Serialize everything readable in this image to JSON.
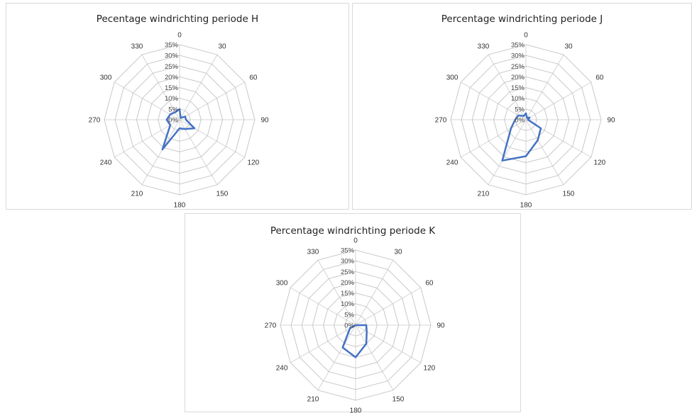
{
  "chart_data": [
    {
      "type": "radar",
      "title": "Pecentage windrichting periode H",
      "categories": [
        "0",
        "30",
        "60",
        "90",
        "120",
        "150",
        "180",
        "210",
        "240",
        "270",
        "300",
        "330"
      ],
      "ring_labels": [
        "0%",
        "5%",
        "10%",
        "15%",
        "20%",
        "25%",
        "30%",
        "35%"
      ],
      "rlim": [
        0,
        35
      ],
      "values": [
        5,
        1,
        3,
        3,
        8,
        5,
        4,
        16,
        5,
        6,
        5,
        4
      ],
      "color": "#4472c4"
    },
    {
      "type": "radar",
      "title": "Percentage windrichting periode J",
      "categories": [
        "0",
        "30",
        "60",
        "90",
        "120",
        "150",
        "180",
        "210",
        "240",
        "270",
        "300",
        "330"
      ],
      "ring_labels": [
        "0%",
        "5%",
        "10%",
        "15%",
        "20%",
        "25%",
        "30%",
        "35%"
      ],
      "rlim": [
        0,
        35
      ],
      "values": [
        3,
        1,
        2,
        1,
        8,
        11,
        17,
        22,
        8,
        5,
        4,
        2
      ],
      "color": "#4472c4"
    },
    {
      "type": "radar",
      "title": "Percentage windrichting periode K",
      "categories": [
        "0",
        "30",
        "60",
        "90",
        "120",
        "150",
        "180",
        "210",
        "240",
        "270",
        "300",
        "330"
      ],
      "ring_labels": [
        "0%",
        "5%",
        "10%",
        "15%",
        "20%",
        "25%",
        "30%",
        "35%"
      ],
      "rlim": [
        0,
        35
      ],
      "values": [
        0,
        0,
        0,
        5,
        6,
        10,
        15,
        12,
        3,
        0,
        0,
        0
      ],
      "color": "#4472c4"
    }
  ]
}
